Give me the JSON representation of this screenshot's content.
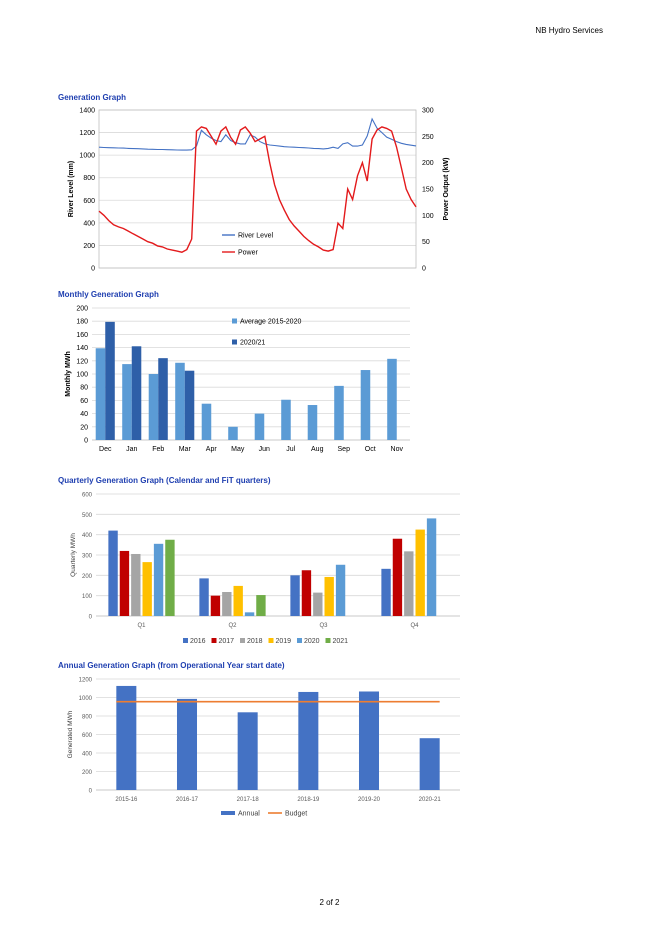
{
  "header": {
    "company": "NB Hydro Services"
  },
  "footer": {
    "page": "2 of 2"
  },
  "colors": {
    "river": "#4472c4",
    "power": "#e31a1c",
    "avg_bar": "#5b9bd5",
    "cur_bar": "#2e5fa8",
    "y2016": "#4472c4",
    "y2017": "#c00000",
    "y2018": "#a5a5a5",
    "y2019": "#ffc000",
    "y2020": "#5b9bd5",
    "y2021": "#70ad47",
    "annual": "#4472c4",
    "budget": "#ed7d31",
    "grid": "#d9d9d9"
  },
  "chart_data": [
    {
      "id": "generation",
      "title": "Generation Graph",
      "type": "line",
      "ylabel": "River Level (mm)",
      "y2label": "Power Output (kW)",
      "ylim": [
        0,
        1400
      ],
      "y2lim": [
        0,
        300
      ],
      "yticks": [
        0,
        200,
        400,
        600,
        800,
        1000,
        1200,
        1400
      ],
      "y2ticks": [
        0,
        50,
        100,
        150,
        200,
        250,
        300
      ],
      "grid": true,
      "legend": "center",
      "series": [
        {
          "name": "River Level",
          "axis": "left",
          "values": [
            1070,
            1068,
            1066,
            1065,
            1063,
            1062,
            1060,
            1058,
            1057,
            1055,
            1053,
            1052,
            1050,
            1050,
            1048,
            1047,
            1046,
            1045,
            1045,
            1047,
            1080,
            1220,
            1180,
            1150,
            1130,
            1120,
            1180,
            1130,
            1110,
            1100,
            1100,
            1180,
            1160,
            1120,
            1100,
            1090,
            1085,
            1080,
            1075,
            1072,
            1070,
            1068,
            1066,
            1063,
            1060,
            1058,
            1055,
            1060,
            1070,
            1060,
            1100,
            1110,
            1080,
            1080,
            1090,
            1170,
            1320,
            1240,
            1200,
            1160,
            1140,
            1120,
            1105,
            1095,
            1088,
            1082
          ]
        },
        {
          "name": "Power",
          "axis": "right",
          "values": [
            108,
            100,
            90,
            82,
            78,
            75,
            70,
            65,
            60,
            55,
            50,
            47,
            42,
            40,
            36,
            34,
            32,
            30,
            35,
            55,
            260,
            268,
            265,
            250,
            235,
            260,
            268,
            248,
            235,
            262,
            268,
            256,
            240,
            245,
            250,
            200,
            158,
            130,
            110,
            92,
            80,
            70,
            60,
            52,
            45,
            40,
            34,
            32,
            35,
            85,
            75,
            150,
            130,
            175,
            200,
            165,
            245,
            262,
            268,
            265,
            260,
            230,
            190,
            150,
            130,
            116
          ]
        }
      ]
    },
    {
      "id": "monthly",
      "title": "Monthly Generation Graph",
      "type": "bar",
      "ylabel": "Monthly MWh",
      "ylim": [
        0,
        200
      ],
      "yticks": [
        0,
        20,
        40,
        60,
        80,
        100,
        120,
        140,
        160,
        180,
        200
      ],
      "grid": true,
      "legend": "top-right",
      "categories": [
        "Dec",
        "Jan",
        "Feb",
        "Mar",
        "Apr",
        "May",
        "Jun",
        "Jul",
        "Aug",
        "Sep",
        "Oct",
        "Nov"
      ],
      "series": [
        {
          "name": "Average 2015-2020",
          "values": [
            139,
            115,
            100,
            117,
            55,
            20,
            40,
            61,
            53,
            82,
            106,
            123
          ]
        },
        {
          "name": "2020/21",
          "values": [
            179,
            142,
            124,
            105,
            null,
            null,
            null,
            null,
            null,
            null,
            null,
            null
          ]
        }
      ]
    },
    {
      "id": "quarterly",
      "title": "Quarterly Generation Graph (Calendar and FiT quarters)",
      "type": "bar",
      "ylabel": "Quarterly MWh",
      "ylim": [
        0,
        600
      ],
      "yticks": [
        0,
        100,
        200,
        300,
        400,
        500,
        600
      ],
      "grid": true,
      "legend": "bottom",
      "categories": [
        "Q1",
        "Q2",
        "Q3",
        "Q4"
      ],
      "series": [
        {
          "name": "2016",
          "values": [
            420,
            185,
            200,
            232
          ]
        },
        {
          "name": "2017",
          "values": [
            320,
            100,
            225,
            380
          ]
        },
        {
          "name": "2018",
          "values": [
            305,
            118,
            115,
            318
          ]
        },
        {
          "name": "2019",
          "values": [
            265,
            148,
            192,
            425
          ]
        },
        {
          "name": "2020",
          "values": [
            355,
            18,
            252,
            480
          ]
        },
        {
          "name": "2021",
          "values": [
            375,
            103,
            null,
            null
          ]
        }
      ]
    },
    {
      "id": "annual",
      "title": "Annual Generation Graph (from Operational Year start date)",
      "type": "bar",
      "ylabel": "Generated MWh",
      "ylim": [
        0,
        1200
      ],
      "yticks": [
        0,
        200,
        400,
        600,
        800,
        1000,
        1200
      ],
      "grid": true,
      "legend": "bottom",
      "categories": [
        "2015-16",
        "2016-17",
        "2017-18",
        "2018-19",
        "2019-20",
        "2020-21"
      ],
      "series": [
        {
          "name": "Annual",
          "values": [
            1125,
            985,
            840,
            1060,
            1065,
            560
          ]
        },
        {
          "name": "Budget",
          "values": [
            955,
            955,
            955,
            955,
            955,
            955
          ]
        }
      ]
    }
  ]
}
